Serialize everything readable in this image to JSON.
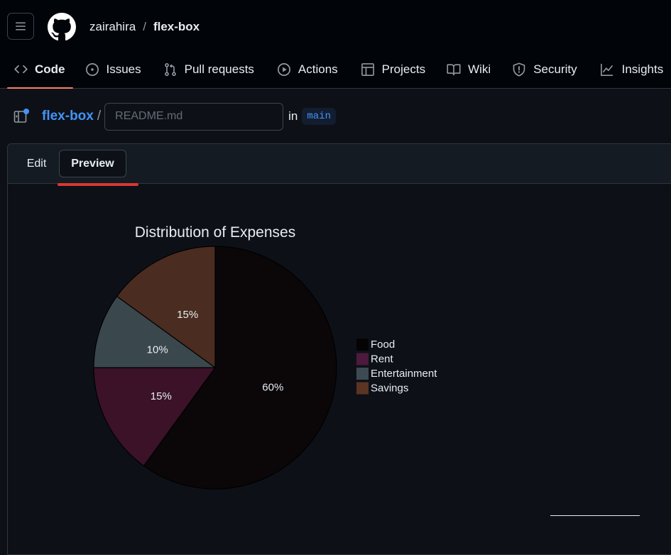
{
  "header": {
    "owner": "zairahira",
    "separator": "/",
    "repo": "flex-box"
  },
  "tabs": [
    {
      "label": "Code",
      "icon": "code-icon",
      "active": true
    },
    {
      "label": "Issues",
      "icon": "issue-opened-icon"
    },
    {
      "label": "Pull requests",
      "icon": "git-pull-request-icon"
    },
    {
      "label": "Actions",
      "icon": "play-icon"
    },
    {
      "label": "Projects",
      "icon": "table-icon"
    },
    {
      "label": "Wiki",
      "icon": "book-icon"
    },
    {
      "label": "Security",
      "icon": "shield-icon"
    },
    {
      "label": "Insights",
      "icon": "graph-icon"
    }
  ],
  "editor": {
    "repo_link": "flex-box",
    "path_separator": "/",
    "filename_placeholder": "README.md",
    "filename_value": "",
    "in_label": "in",
    "branch": "main",
    "edit_label": "Edit",
    "preview_label": "Preview"
  },
  "chart_data": {
    "type": "pie",
    "title": "Distribution of Expenses",
    "categories": [
      "Food",
      "Rent",
      "Entertainment",
      "Savings"
    ],
    "values": [
      60,
      15,
      10,
      15
    ],
    "labels": [
      "60%",
      "15%",
      "10%",
      "15%"
    ],
    "colors": [
      "#0b0608",
      "#3b1228",
      "#3a474d",
      "#4a2c20"
    ],
    "legend_colors": [
      "#050304",
      "#4c1a3c",
      "#3d4a51",
      "#5b3424"
    ],
    "start_angle_deg": 0,
    "direction": "clockwise",
    "legend_position": "right"
  }
}
